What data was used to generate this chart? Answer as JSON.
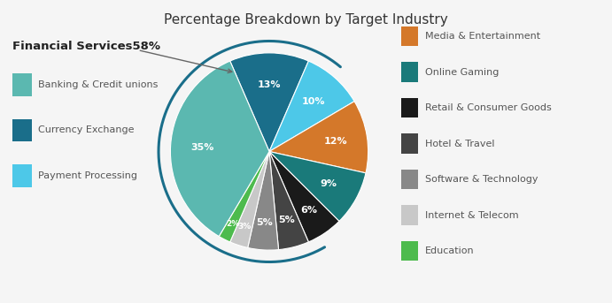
{
  "title": "Percentage Breakdown by Target Industry",
  "slices": [
    {
      "label": "Currency Exchange",
      "pct": 13,
      "color": "#1a6e8a"
    },
    {
      "label": "Payment Processing",
      "pct": 10,
      "color": "#4dc8e8"
    },
    {
      "label": "Media & Entertainment",
      "pct": 12,
      "color": "#d4782a"
    },
    {
      "label": "Online Gaming",
      "pct": 9,
      "color": "#1a7a7a"
    },
    {
      "label": "Retail & Consumer Goods",
      "pct": 6,
      "color": "#1a1a1a"
    },
    {
      "label": "Hotel & Travel",
      "pct": 5,
      "color": "#444444"
    },
    {
      "label": "Software & Technology",
      "pct": 5,
      "color": "#888888"
    },
    {
      "label": "Internet & Telecom",
      "pct": 3,
      "color": "#c8c8c8"
    },
    {
      "label": "Education",
      "pct": 2,
      "color": "#4dbb4d"
    },
    {
      "label": "Banking & Credit unions",
      "pct": 35,
      "color": "#5bb8b0"
    }
  ],
  "left_legend_items": [
    {
      "label": "Banking & Credit unions",
      "color": "#5bb8b0"
    },
    {
      "label": "Currency Exchange",
      "color": "#1a6e8a"
    },
    {
      "label": "Payment Processing",
      "color": "#4dc8e8"
    }
  ],
  "right_legend_items": [
    {
      "label": "Media & Entertainment",
      "color": "#d4782a"
    },
    {
      "label": "Online Gaming",
      "color": "#1a7a7a"
    },
    {
      "label": "Retail & Consumer Goods",
      "color": "#1a1a1a"
    },
    {
      "label": "Hotel & Travel",
      "color": "#444444"
    },
    {
      "label": "Software & Technology",
      "color": "#888888"
    },
    {
      "label": "Internet & Telecom",
      "color": "#c8c8c8"
    },
    {
      "label": "Education",
      "color": "#4dbb4d"
    }
  ],
  "financial_services_label": "Financial Services",
  "financial_services_pct": "58%",
  "background_color": "#f5f5f5",
  "title_fontsize": 11,
  "label_fontsize": 8,
  "legend_fontsize": 8,
  "arc_color": "#1a6e8a",
  "startangle": 113.4
}
